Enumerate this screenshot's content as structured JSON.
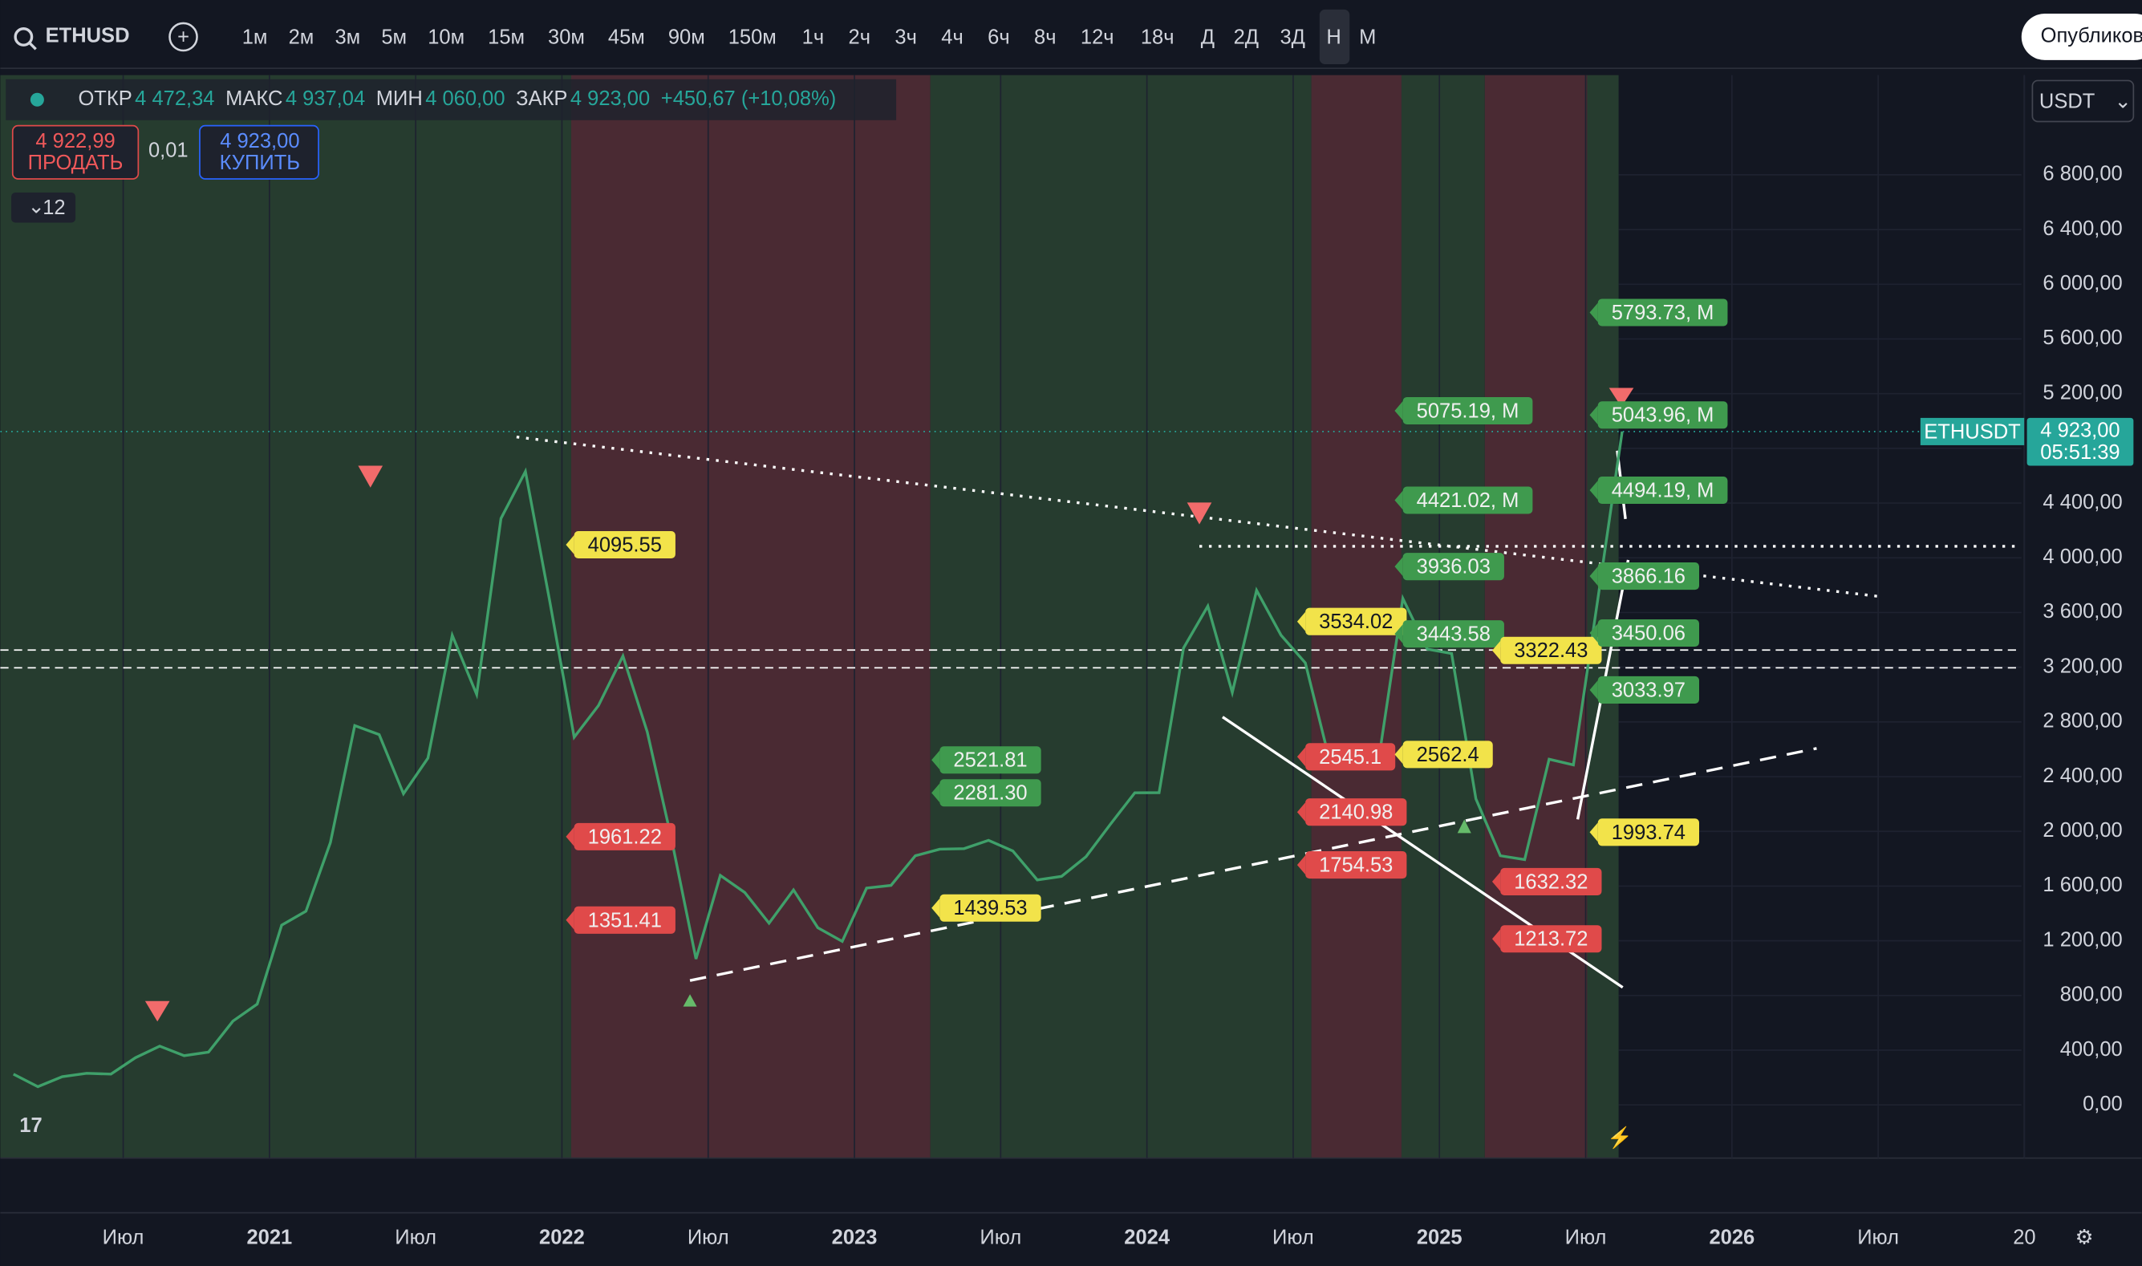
{
  "toolbar": {
    "symbol": "ETHUSD",
    "intervals": [
      "1м",
      "2м",
      "3м",
      "5м",
      "10м",
      "15м",
      "30м",
      "45м",
      "90м",
      "150м",
      "1ч",
      "2ч",
      "3ч",
      "4ч",
      "6ч",
      "8ч",
      "12ч",
      "18ч",
      "Д",
      "2Д",
      "3Д",
      "Н",
      "М"
    ],
    "active_interval": "Н",
    "publish": "Опубликовать"
  },
  "legend": {
    "open_label": "ОТКР",
    "open": "4 472,34",
    "high_label": "МАКС",
    "high": "4 937,04",
    "low_label": "МИН",
    "low": "4 060,00",
    "close_label": "ЗАКР",
    "close": "4 923,00",
    "change": "+450,67 (+10,08%)",
    "sell_price": "4 922,99",
    "sell": "ПРОДАТЬ",
    "spread": "0,01",
    "buy_price": "4 923,00",
    "buy": "КУПИТЬ",
    "indicators": "12"
  },
  "currency": "USDT",
  "chart_data": {
    "type": "line",
    "color": "#3fa06a",
    "x": [
      "2020-02",
      "2020-03",
      "2020-04",
      "2020-05",
      "2020-06",
      "2020-07",
      "2020-08",
      "2020-09",
      "2020-10",
      "2020-11",
      "2020-12",
      "2021-01",
      "2021-02",
      "2021-03",
      "2021-04",
      "2021-05",
      "2021-06",
      "2021-07",
      "2021-08",
      "2021-09",
      "2021-10",
      "2021-11",
      "2021-12",
      "2022-01",
      "2022-02",
      "2022-03",
      "2022-04",
      "2022-05",
      "2022-06",
      "2022-07",
      "2022-08",
      "2022-09",
      "2022-10",
      "2022-11",
      "2022-12",
      "2023-01",
      "2023-02",
      "2023-03",
      "2023-04",
      "2023-05",
      "2023-06",
      "2023-07",
      "2023-08",
      "2023-09",
      "2023-10",
      "2023-11",
      "2023-12",
      "2024-01",
      "2024-02",
      "2024-03",
      "2024-04",
      "2024-05",
      "2024-06",
      "2024-07",
      "2024-08",
      "2024-09",
      "2024-10",
      "2024-11",
      "2024-12",
      "2025-01",
      "2025-02",
      "2025-03",
      "2025-04",
      "2025-05",
      "2025-06",
      "2025-07",
      "2025-08"
    ],
    "values": [
      225,
      133,
      206,
      231,
      225,
      345,
      430,
      360,
      386,
      612,
      737,
      1314,
      1416,
      1919,
      2773,
      2707,
      2275,
      2536,
      3433,
      3001,
      4288,
      4631,
      3683,
      2688,
      2920,
      3282,
      2727,
      1942,
      1067,
      1678,
      1553,
      1328,
      1572,
      1295,
      1196,
      1585,
      1605,
      1822,
      1870,
      1874,
      1934,
      1857,
      1645,
      1671,
      1815,
      2051,
      2282,
      2283,
      3340,
      3647,
      3015,
      3762,
      3434,
      3232,
      2513,
      2603,
      2518,
      3703,
      3332,
      3300,
      2237,
      1822,
      1794,
      2528,
      2486,
      3700,
      4923
    ],
    "xlim": [
      2020.08,
      2026.99
    ],
    "ylim": [
      -389,
      7529
    ],
    "xticks": [
      {
        "value": 2020.5,
        "label": "Июл"
      },
      2021,
      {
        "value": 2021.5,
        "label": "Июл"
      },
      2022,
      {
        "value": 2022.5,
        "label": "Июл"
      },
      2023,
      {
        "value": 2023.5,
        "label": "Июл"
      },
      2024,
      {
        "value": 2024.5,
        "label": "Июл"
      },
      2025,
      {
        "value": 2025.5,
        "label": "Июл"
      },
      2026,
      {
        "value": 2026.5,
        "label": "Июл"
      },
      {
        "value": 2027,
        "label": "20"
      }
    ],
    "yticks": [
      {
        "value": 0,
        "label": "0,00"
      },
      {
        "value": 400,
        "label": "400,00"
      },
      {
        "value": 800,
        "label": "800,00"
      },
      {
        "value": 1200,
        "label": "1 200,00"
      },
      {
        "value": 1600,
        "label": "1 600,00"
      },
      {
        "value": 2000,
        "label": "2 000,00"
      },
      {
        "value": 2400,
        "label": "2 400,00"
      },
      {
        "value": 2800,
        "label": "2 800,00"
      },
      {
        "value": 3200,
        "label": "3 200,00"
      },
      {
        "value": 3600,
        "label": "3 600,00"
      },
      {
        "value": 4000,
        "label": "4 000,00"
      },
      {
        "value": 4400,
        "label": "4 400,00"
      },
      {
        "value": 4800,
        "label": "4 800,00"
      },
      {
        "value": 5200,
        "label": "5 200,00"
      },
      {
        "value": 5600,
        "label": "5 600,00"
      },
      {
        "value": 6000,
        "label": "6 000,00"
      },
      {
        "value": 6400,
        "label": "6 400,00"
      },
      {
        "value": 6800,
        "label": "6 800,00"
      }
    ],
    "last_price": {
      "symbol": "ETHUSDT",
      "value": 4923,
      "label": "4 923,00",
      "countdown": "05:51:39"
    },
    "annotations": [
      {
        "date": "2022-01",
        "value": 4095.55,
        "label": "4095.55",
        "color": "#f2e34a"
      },
      {
        "date": "2022-01",
        "value": 1961.22,
        "label": "1961.22",
        "color": "#e04a4a"
      },
      {
        "date": "2022-01",
        "value": 1351.41,
        "label": "1351.41",
        "color": "#e04a4a"
      },
      {
        "date": "2023-04",
        "value": 2521.81,
        "label": "2521.81",
        "color": "#3f9a4e"
      },
      {
        "date": "2023-04",
        "value": 2281.3,
        "label": "2281.30",
        "color": "#3f9a4e"
      },
      {
        "date": "2023-04",
        "value": 1439.53,
        "label": "1439.53",
        "color": "#f2e34a"
      },
      {
        "date": "2024-07",
        "value": 3534.02,
        "label": "3534.02",
        "color": "#f2e34a"
      },
      {
        "date": "2024-07",
        "value": 2545.1,
        "label": "2545.1",
        "color": "#e04a4a"
      },
      {
        "date": "2024-07",
        "value": 2140.98,
        "label": "2140.98",
        "color": "#e04a4a"
      },
      {
        "date": "2024-07",
        "value": 1754.53,
        "label": "1754.53",
        "color": "#e04a4a"
      },
      {
        "date": "2024-11",
        "value": 5075.19,
        "label": "5075.19, M",
        "color": "#3f9a4e"
      },
      {
        "date": "2024-11",
        "value": 4421.02,
        "label": "4421.02, M",
        "color": "#3f9a4e"
      },
      {
        "date": "2024-11",
        "value": 3936.03,
        "label": "3936.03",
        "color": "#3f9a4e"
      },
      {
        "date": "2024-11",
        "value": 3443.58,
        "label": "3443.58",
        "color": "#3f9a4e"
      },
      {
        "date": "2024-11",
        "value": 2562.4,
        "label": "2562.4",
        "color": "#f2e34a"
      },
      {
        "date": "2025-03",
        "value": 3322.43,
        "label": "3322.43",
        "color": "#f2e34a"
      },
      {
        "date": "2025-03",
        "value": 1632.32,
        "label": "1632.32",
        "color": "#e04a4a"
      },
      {
        "date": "2025-03",
        "value": 1213.72,
        "label": "1213.72",
        "color": "#e04a4a"
      },
      {
        "date": "2025-07",
        "value": 5793.73,
        "label": "5793.73, M",
        "color": "#3f9a4e"
      },
      {
        "date": "2025-07",
        "value": 5043.96,
        "label": "5043.96, M",
        "color": "#3f9a4e"
      },
      {
        "date": "2025-07",
        "value": 4494.19,
        "label": "4494.19, M",
        "color": "#3f9a4e"
      },
      {
        "date": "2025-07",
        "value": 3866.16,
        "label": "3866.16",
        "color": "#3f9a4e"
      },
      {
        "date": "2025-07",
        "value": 3450.06,
        "label": "3450.06",
        "color": "#3f9a4e"
      },
      {
        "date": "2025-07",
        "value": 3033.97,
        "label": "3033.97",
        "color": "#3f9a4e"
      },
      {
        "date": "2025-07",
        "value": 1993.74,
        "label": "1993.74",
        "color": "#f2e34a"
      }
    ]
  }
}
